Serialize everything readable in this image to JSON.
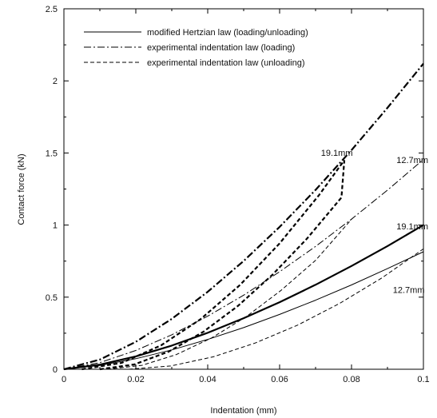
{
  "chart_data": {
    "type": "line",
    "title": "",
    "xlabel": "Indentation (mm)",
    "ylabel": "Contact force (kN)",
    "xlim": [
      0,
      0.1
    ],
    "ylim": [
      0,
      2.5
    ],
    "xticks": [
      0,
      0.02,
      0.04,
      0.06,
      0.08,
      0.1
    ],
    "xtick_labels": [
      "0",
      "0.02",
      "0.04",
      "0.06",
      "0.08",
      "0.1"
    ],
    "yticks": [
      0,
      0.5,
      1,
      1.5,
      2,
      2.5
    ],
    "ytick_labels": [
      "0",
      "0.5",
      "1",
      "1.5",
      "2",
      "2.5"
    ],
    "grid": false,
    "legend_position": "top-left",
    "legend": [
      {
        "label": "modified Hertzian law (loading/unloading)",
        "style": "solid"
      },
      {
        "label": "experimental indentation law (loading)",
        "style": "dashdot"
      },
      {
        "label": "experimental indentation law (unloading)",
        "style": "dashed"
      }
    ],
    "series": [
      {
        "law": "hertz",
        "diameter": "19.1mm",
        "style": "solid",
        "weight": "bold",
        "x": [
          0,
          0.01,
          0.02,
          0.03,
          0.04,
          0.05,
          0.06,
          0.07,
          0.08,
          0.09,
          0.1
        ],
        "y": [
          0,
          0.032,
          0.089,
          0.164,
          0.253,
          0.354,
          0.465,
          0.586,
          0.716,
          0.854,
          1.0
        ]
      },
      {
        "law": "hertz",
        "diameter": "12.7mm",
        "style": "solid",
        "weight": "thin",
        "x": [
          0,
          0.01,
          0.02,
          0.03,
          0.04,
          0.05,
          0.06,
          0.07,
          0.08,
          0.09,
          0.1
        ],
        "y": [
          0,
          0.026,
          0.073,
          0.134,
          0.207,
          0.289,
          0.38,
          0.479,
          0.585,
          0.698,
          0.815
        ]
      },
      {
        "law": "loading",
        "diameter": "19.1mm",
        "style": "dashdot",
        "weight": "bold",
        "x": [
          0,
          0.01,
          0.02,
          0.03,
          0.04,
          0.05,
          0.06,
          0.07,
          0.08,
          0.09,
          0.1
        ],
        "y": [
          0,
          0.067,
          0.19,
          0.349,
          0.537,
          0.751,
          0.987,
          1.244,
          1.52,
          1.813,
          2.12
        ]
      },
      {
        "law": "loading",
        "diameter": "12.7mm",
        "style": "dashdot",
        "weight": "thin",
        "x": [
          0,
          0.01,
          0.02,
          0.03,
          0.04,
          0.05,
          0.06,
          0.07,
          0.08,
          0.09,
          0.1
        ],
        "y": [
          0,
          0.046,
          0.13,
          0.239,
          0.368,
          0.514,
          0.676,
          0.852,
          1.041,
          1.242,
          1.455
        ]
      },
      {
        "law": "unloading",
        "diameter": "19.1mm",
        "style": "dashed",
        "weight": "bold",
        "x": [
          0.005,
          0.016,
          0.027,
          0.038,
          0.049,
          0.06,
          0.071,
          0.078
        ],
        "y": [
          0,
          0.044,
          0.165,
          0.347,
          0.585,
          0.873,
          1.209,
          1.45
        ]
      },
      {
        "law": "unloading",
        "diameter": "19.1mm",
        "style": "dashed",
        "weight": "bold",
        "x": [
          0.01,
          0.0196,
          0.0292,
          0.0388,
          0.0484,
          0.058,
          0.0676,
          0.0772,
          0.078
        ],
        "y": [
          0,
          0.033,
          0.123,
          0.26,
          0.439,
          0.655,
          0.906,
          1.191,
          1.45
        ]
      },
      {
        "law": "unloading",
        "diameter": "12.7mm",
        "style": "dashed",
        "weight": "thin",
        "x": [
          0.012,
          0.0217,
          0.0313,
          0.041,
          0.0507,
          0.0603,
          0.07,
          0.08
        ],
        "y": [
          0,
          0.027,
          0.102,
          0.216,
          0.364,
          0.545,
          0.755,
          1.04
        ]
      },
      {
        "law": "unloading",
        "diameter": "12.7mm",
        "style": "dashed",
        "weight": "thin",
        "x": [
          0.018,
          0.0297,
          0.0415,
          0.0532,
          0.065,
          0.0767,
          0.0885,
          0.1
        ],
        "y": [
          0,
          0.023,
          0.086,
          0.182,
          0.306,
          0.457,
          0.634,
          0.835
        ]
      }
    ],
    "annotations": [
      {
        "text": "19.1mm",
        "x": 0.0715,
        "y": 1.48
      },
      {
        "text": "12.7mm",
        "x": 0.0925,
        "y": 1.43
      },
      {
        "text": "19.1mm",
        "x": 0.0925,
        "y": 0.97
      },
      {
        "text": "12.7mm",
        "x": 0.0915,
        "y": 0.53
      }
    ]
  }
}
